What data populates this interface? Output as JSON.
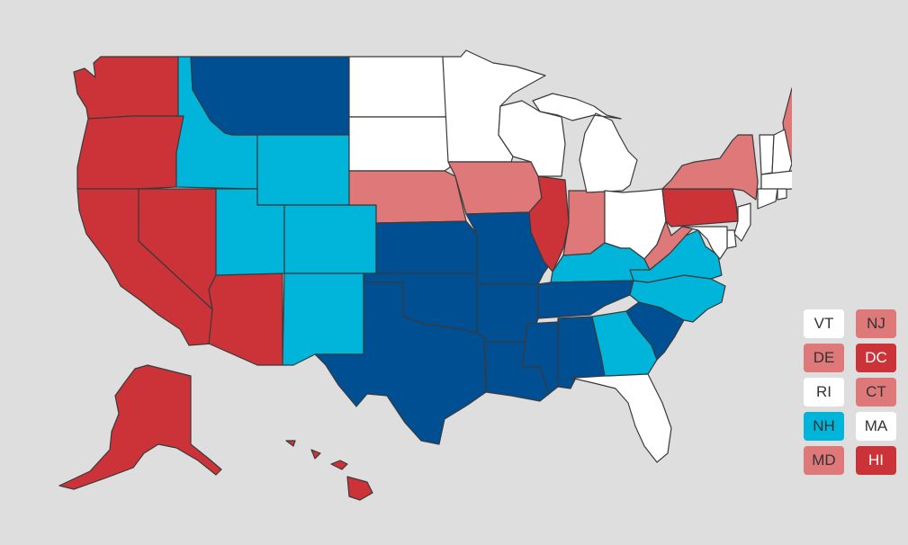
{
  "colors": {
    "background": "#dedede",
    "white": "#ffffff",
    "lean_red": "#df7878",
    "solid_red": "#cc3338",
    "lean_blue": "#00b4da",
    "solid_blue": "#004f92",
    "border": "#3a3a3a"
  },
  "states": {
    "WA": "solid_red",
    "OR": "solid_red",
    "CA": "solid_red",
    "NV": "solid_red",
    "AZ": "solid_red",
    "AK": "solid_red",
    "HI": "solid_red",
    "IL": "solid_red",
    "PA": "solid_red",
    "ID": "lean_blue",
    "UT": "lean_blue",
    "WY": "lean_blue",
    "CO": "lean_blue",
    "NM": "lean_blue",
    "KY": "lean_blue",
    "VA": "lean_blue",
    "NC": "lean_blue",
    "GA": "lean_blue",
    "MT": "solid_blue",
    "KS": "solid_blue",
    "OK": "solid_blue",
    "TX": "solid_blue",
    "MO": "solid_blue",
    "AR": "solid_blue",
    "LA": "solid_blue",
    "MS": "solid_blue",
    "AL": "solid_blue",
    "TN": "solid_blue",
    "SC": "solid_blue",
    "NE": "lean_red",
    "IA": "lean_red",
    "IN": "lean_red",
    "WV": "lean_red",
    "NY": "lean_red",
    "ME": "lean_red",
    "ND": "white",
    "SD": "white",
    "MN": "white",
    "WI": "white",
    "MI": "white",
    "OH": "white",
    "FL": "white"
  },
  "small_states": [
    {
      "label": "VT",
      "color": "white"
    },
    {
      "label": "NJ",
      "color": "lean_red"
    },
    {
      "label": "DE",
      "color": "lean_red"
    },
    {
      "label": "DC",
      "color": "solid_red"
    },
    {
      "label": "RI",
      "color": "white"
    },
    {
      "label": "CT",
      "color": "lean_red"
    },
    {
      "label": "NH",
      "color": "lean_blue"
    },
    {
      "label": "MA",
      "color": "white"
    },
    {
      "label": "MD",
      "color": "lean_red"
    },
    {
      "label": "HI",
      "color": "solid_red"
    }
  ]
}
